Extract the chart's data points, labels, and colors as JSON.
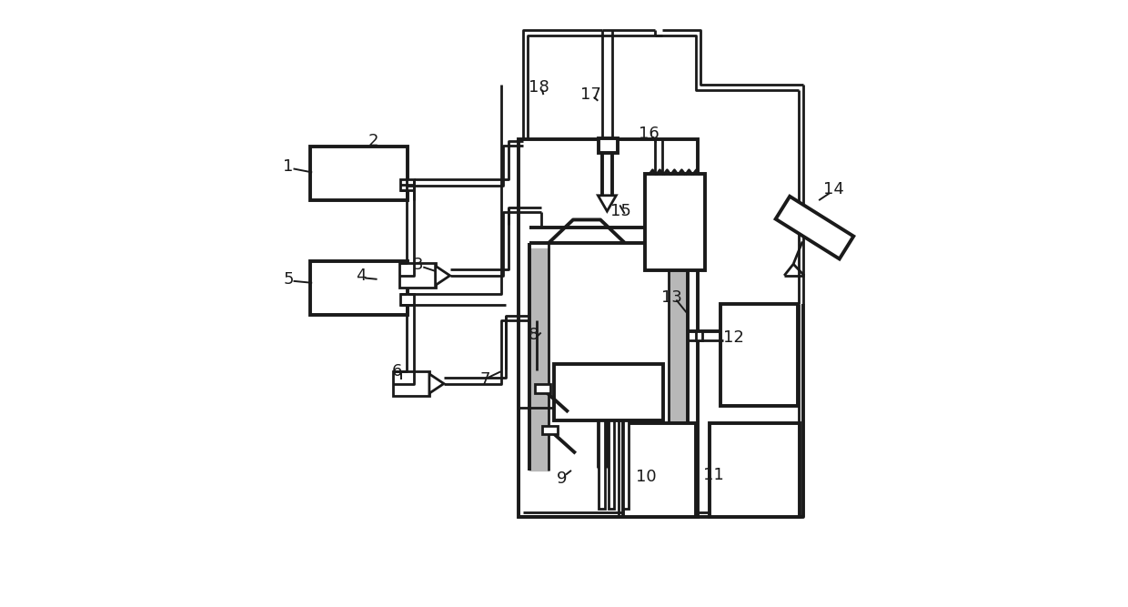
{
  "bg": "#ffffff",
  "lc": "#1a1a1a",
  "gray": "#b8b8b8",
  "lw": 2.0,
  "lw_thick": 2.8,
  "lw_thin": 1.4,
  "figsize": [
    12.4,
    6.67
  ],
  "dpi": 100
}
